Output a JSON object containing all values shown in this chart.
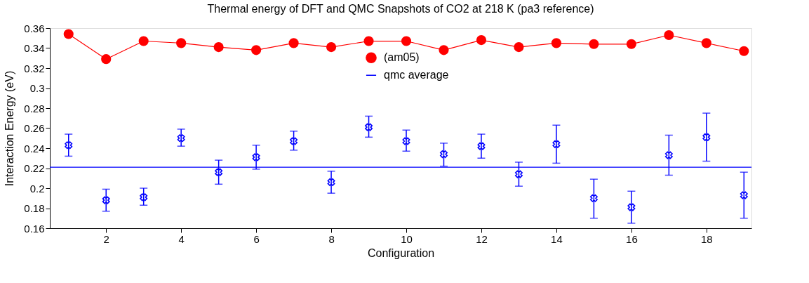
{
  "chart_data": {
    "type": "line",
    "title": "Thermal energy of DFT and QMC Snapshots of CO2 at 218 K (pa3 reference)",
    "xlabel": "Configuration",
    "ylabel": "Interaction Energy (eV)",
    "x": [
      1,
      2,
      3,
      4,
      5,
      6,
      7,
      8,
      9,
      10,
      11,
      12,
      13,
      14,
      15,
      16,
      17,
      18,
      19
    ],
    "series": [
      {
        "name": "(am05)",
        "color": "#ff0000",
        "marker": "circle",
        "values": [
          0.354,
          0.329,
          0.347,
          0.345,
          0.341,
          0.338,
          0.345,
          0.341,
          0.347,
          0.347,
          0.338,
          0.348,
          0.341,
          0.345,
          0.344,
          0.344,
          0.353,
          0.345,
          0.337
        ]
      },
      {
        "type": "scatter",
        "color": "#0000ff",
        "marker": "cross",
        "values": [
          0.243,
          0.188,
          0.191,
          0.25,
          0.216,
          0.231,
          0.247,
          0.206,
          0.261,
          0.247,
          0.234,
          0.242,
          0.214,
          0.244,
          0.19,
          0.181,
          0.233,
          0.251,
          0.193
        ],
        "errors": [
          [
            0.232,
            0.254
          ],
          [
            0.177,
            0.199
          ],
          [
            0.183,
            0.2
          ],
          [
            0.242,
            0.259
          ],
          [
            0.204,
            0.228
          ],
          [
            0.219,
            0.243
          ],
          [
            0.238,
            0.257
          ],
          [
            0.195,
            0.217
          ],
          [
            0.251,
            0.272
          ],
          [
            0.237,
            0.258
          ],
          [
            0.222,
            0.245
          ],
          [
            0.23,
            0.254
          ],
          [
            0.202,
            0.226
          ],
          [
            0.225,
            0.263
          ],
          [
            0.17,
            0.209
          ],
          [
            0.165,
            0.197
          ],
          [
            0.213,
            0.253
          ],
          [
            0.227,
            0.275
          ],
          [
            0.17,
            0.216
          ]
        ]
      }
    ],
    "ref_lines": [
      {
        "axis": "y",
        "value": 0.221,
        "label": "qmc average",
        "color": "#0000ff"
      }
    ],
    "xlim": [
      0.5,
      19.2
    ],
    "xticks": [
      2,
      4,
      6,
      8,
      10,
      12,
      14,
      16,
      18
    ],
    "ylim": [
      0.16,
      0.36
    ],
    "yticks": [
      0.16,
      0.18,
      0.2,
      0.22,
      0.24,
      0.26,
      0.28,
      0.3,
      0.32,
      0.34,
      0.36
    ],
    "grid": false,
    "legend": "top"
  }
}
